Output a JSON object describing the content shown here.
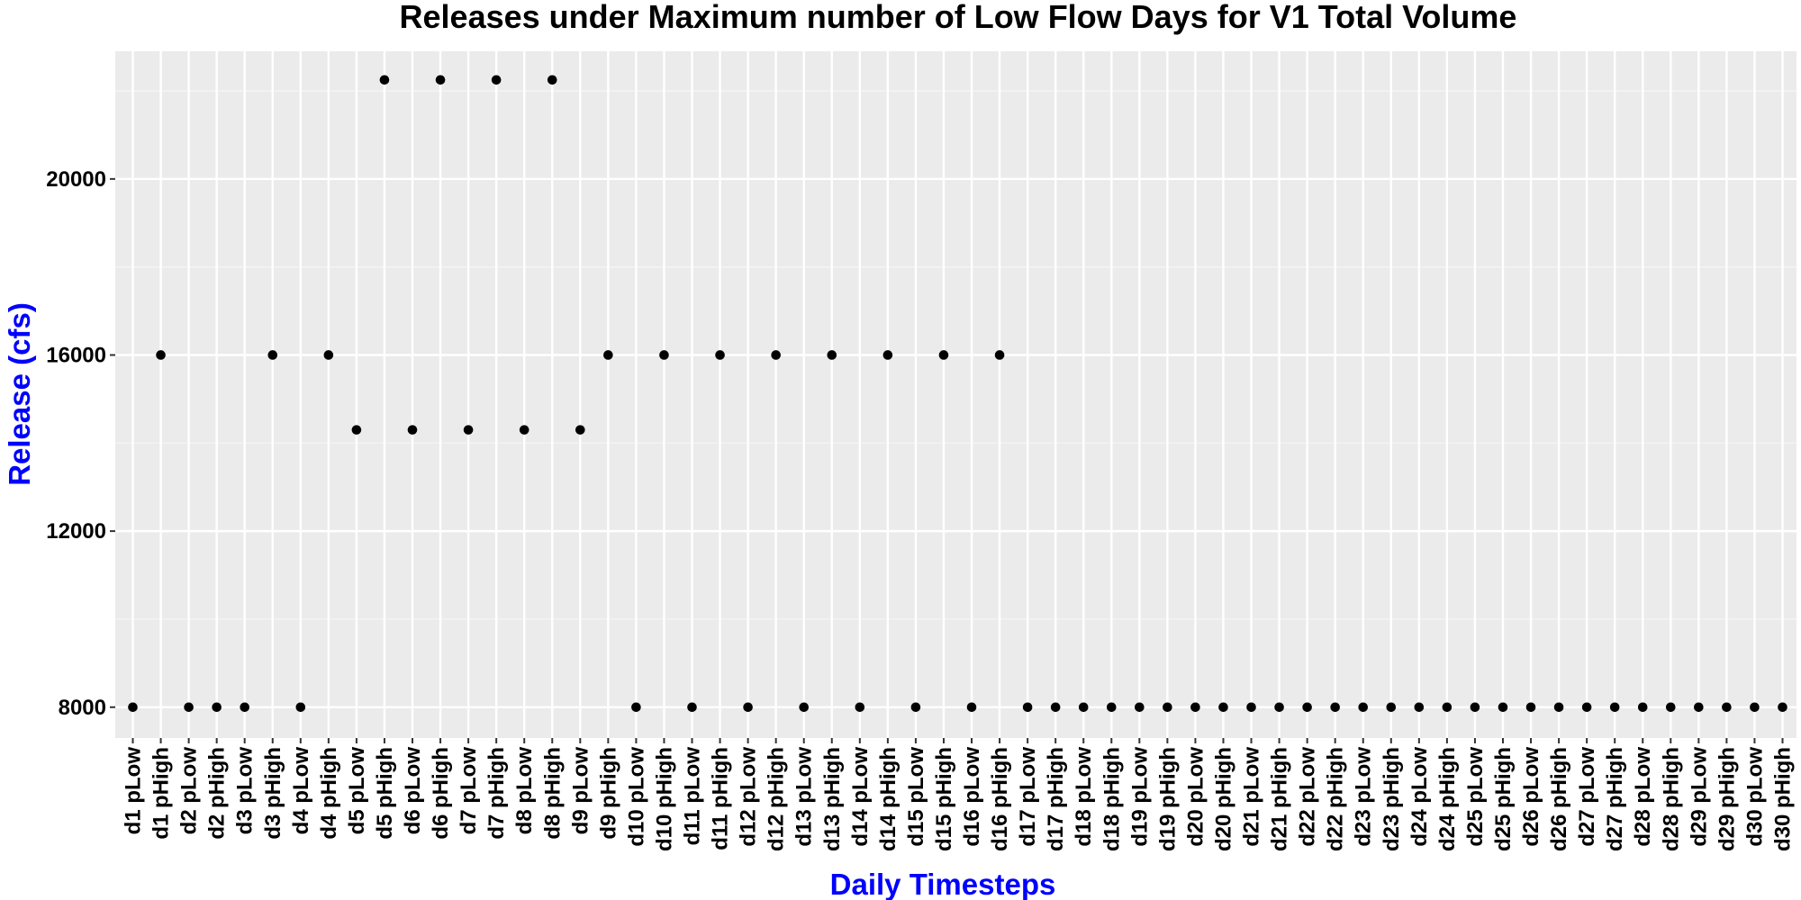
{
  "chart_data": {
    "type": "scatter",
    "title": "Releases under Maximum number of Low Flow Days for V1 Total Volume",
    "xlabel": "Daily Timesteps",
    "ylabel": "Release (cfs)",
    "ylim": [
      7300,
      22900
    ],
    "y_ticks": [
      8000,
      12000,
      16000,
      20000
    ],
    "grid": true,
    "legend": "none",
    "colors": {
      "panel_background": "#ebebeb",
      "grid_major": "#ffffff",
      "grid_minor": "#f5f5f5",
      "point": "#000000",
      "axis_title": "#0000ff",
      "title": "#000000"
    },
    "categories": [
      "d1 pLow",
      "d1 pHigh",
      "d2 pLow",
      "d2 pHigh",
      "d3 pLow",
      "d3 pHigh",
      "d4 pLow",
      "d4 pHigh",
      "d5 pLow",
      "d5 pHigh",
      "d6 pLow",
      "d6 pHigh",
      "d7 pLow",
      "d7 pHigh",
      "d8 pLow",
      "d8 pHigh",
      "d9 pLow",
      "d9 pHigh",
      "d10 pLow",
      "d10 pHigh",
      "d11 pLow",
      "d11 pHigh",
      "d12 pLow",
      "d12 pHigh",
      "d13 pLow",
      "d13 pHigh",
      "d14 pLow",
      "d14 pHigh",
      "d15 pLow",
      "d15 pHigh",
      "d16 pLow",
      "d16 pHigh",
      "d17 pLow",
      "d17 pHigh",
      "d18 pLow",
      "d18 pHigh",
      "d19 pLow",
      "d19 pHigh",
      "d20 pLow",
      "d20 pHigh",
      "d21 pLow",
      "d21 pHigh",
      "d22 pLow",
      "d22 pHigh",
      "d23 pLow",
      "d23 pHigh",
      "d24 pLow",
      "d24 pHigh",
      "d25 pLow",
      "d25 pHigh",
      "d26 pLow",
      "d26 pHigh",
      "d27 pLow",
      "d27 pHigh",
      "d28 pLow",
      "d28 pHigh",
      "d29 pLow",
      "d29 pHigh",
      "d30 pLow",
      "d30 pHigh"
    ],
    "series": [
      {
        "values": [
          8000,
          16000,
          8000,
          8000,
          8000,
          16000,
          8000,
          16000,
          14300,
          22250,
          14300,
          22250,
          14300,
          22250,
          14300,
          22250,
          14300,
          16000,
          8000,
          16000,
          8000,
          16000,
          8000,
          16000,
          8000,
          16000,
          8000,
          16000,
          8000,
          16000,
          8000,
          16000,
          8000,
          8000,
          8000,
          8000,
          8000,
          8000,
          8000,
          8000,
          8000,
          8000,
          8000,
          8000,
          8000,
          8000,
          8000,
          8000,
          8000,
          8000,
          8000,
          8000,
          8000,
          8000,
          8000,
          8000,
          8000,
          8000,
          8000,
          8000
        ]
      }
    ]
  }
}
